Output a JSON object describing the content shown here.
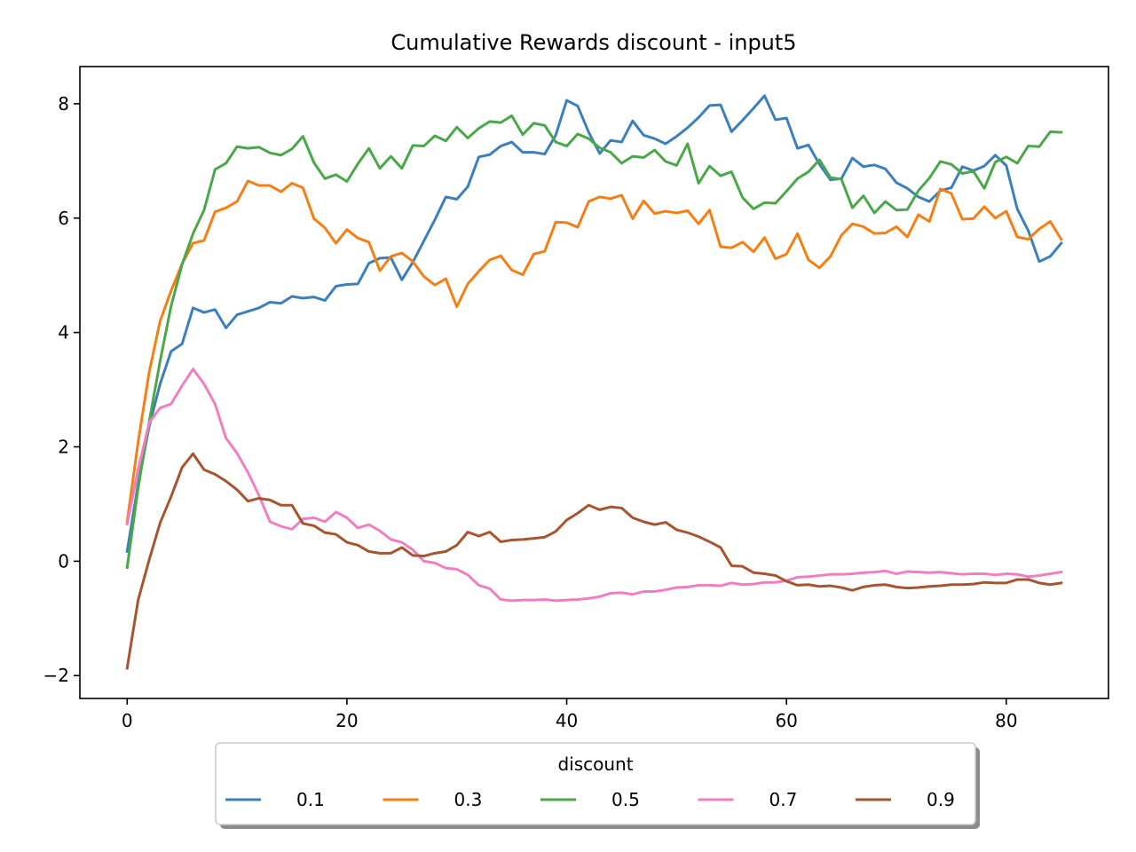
{
  "chart_data": {
    "type": "line",
    "title": "Cumulative Rewards discount - input5",
    "xlabel": "",
    "ylabel": "",
    "xlim": [
      -4.3,
      89.3
    ],
    "ylim": [
      -2.4,
      8.65
    ],
    "xticks": [
      0,
      20,
      40,
      60,
      80
    ],
    "yticks": [
      -2,
      0,
      2,
      4,
      6,
      8
    ],
    "ytick_labels": [
      "−2",
      "0",
      "2",
      "4",
      "6",
      "8"
    ],
    "grid": false,
    "legend": {
      "title": "discount",
      "placement": "lower-center-outside",
      "columns": 5
    },
    "x": [
      0,
      1,
      2,
      3,
      4,
      5,
      6,
      7,
      8,
      9,
      10,
      11,
      12,
      13,
      14,
      15,
      16,
      17,
      18,
      19,
      20,
      21,
      22,
      23,
      24,
      25,
      26,
      27,
      28,
      29,
      30,
      31,
      32,
      33,
      34,
      35,
      36,
      37,
      38,
      39,
      40,
      41,
      42,
      43,
      44,
      45,
      46,
      47,
      48,
      49,
      50,
      51,
      52,
      53,
      54,
      55,
      56,
      57,
      58,
      59,
      60,
      61,
      62,
      63,
      64,
      65,
      66,
      67,
      68,
      69,
      70,
      71,
      72,
      73,
      74,
      75,
      76,
      77,
      78,
      79,
      80,
      81,
      82,
      83,
      84,
      85
    ],
    "series": [
      {
        "name": "0.1",
        "color": "#3d7fb9",
        "values": [
          0.17,
          1.35,
          2.35,
          3.1,
          3.67,
          3.8,
          4.43,
          4.35,
          4.4,
          4.08,
          4.31,
          4.37,
          4.43,
          4.53,
          4.51,
          4.63,
          4.6,
          4.62,
          4.56,
          4.81,
          4.84,
          4.85,
          5.21,
          5.3,
          5.31,
          4.92,
          5.23,
          5.6,
          5.97,
          6.37,
          6.33,
          6.55,
          7.07,
          7.11,
          7.26,
          7.33,
          7.15,
          7.15,
          7.12,
          7.45,
          8.06,
          7.96,
          7.5,
          7.13,
          7.36,
          7.33,
          7.7,
          7.45,
          7.39,
          7.3,
          7.43,
          7.58,
          7.76,
          7.97,
          7.98,
          7.51,
          7.71,
          7.92,
          8.14,
          7.72,
          7.75,
          7.22,
          7.28,
          6.94,
          6.67,
          6.69,
          7.05,
          6.9,
          6.93,
          6.86,
          6.62,
          6.52,
          6.37,
          6.29,
          6.48,
          6.53,
          6.9,
          6.83,
          6.91,
          7.1,
          6.92,
          6.16,
          5.78,
          5.24,
          5.33,
          5.56
        ]
      },
      {
        "name": "0.3",
        "color": "#f47f14",
        "values": [
          0.69,
          2.08,
          3.3,
          4.2,
          4.73,
          5.2,
          5.56,
          5.61,
          6.11,
          6.18,
          6.29,
          6.65,
          6.57,
          6.57,
          6.46,
          6.61,
          6.53,
          5.99,
          5.83,
          5.56,
          5.8,
          5.65,
          5.58,
          5.08,
          5.33,
          5.39,
          5.24,
          4.98,
          4.83,
          4.94,
          4.45,
          4.85,
          5.07,
          5.27,
          5.34,
          5.09,
          5.01,
          5.37,
          5.42,
          5.93,
          5.92,
          5.84,
          6.29,
          6.37,
          6.34,
          6.4,
          5.99,
          6.3,
          6.08,
          6.12,
          6.09,
          6.13,
          5.9,
          6.14,
          5.5,
          5.48,
          5.58,
          5.41,
          5.66,
          5.29,
          5.37,
          5.73,
          5.27,
          5.13,
          5.33,
          5.7,
          5.9,
          5.85,
          5.73,
          5.74,
          5.85,
          5.67,
          6.06,
          5.94,
          6.51,
          6.43,
          5.98,
          5.99,
          6.2,
          6.0,
          6.12,
          5.67,
          5.63,
          5.81,
          5.94,
          5.63
        ]
      },
      {
        "name": "0.5",
        "color": "#4aa84a",
        "values": [
          -0.11,
          1.28,
          2.43,
          3.5,
          4.46,
          5.19,
          5.73,
          6.14,
          6.85,
          6.96,
          7.25,
          7.22,
          7.24,
          7.14,
          7.1,
          7.21,
          7.43,
          6.97,
          6.69,
          6.76,
          6.64,
          6.95,
          7.22,
          6.87,
          7.08,
          6.87,
          7.27,
          7.26,
          7.44,
          7.35,
          7.59,
          7.4,
          7.57,
          7.69,
          7.67,
          7.79,
          7.46,
          7.66,
          7.62,
          7.33,
          7.26,
          7.47,
          7.39,
          7.23,
          7.15,
          6.96,
          7.08,
          7.06,
          7.19,
          6.99,
          6.92,
          7.3,
          6.61,
          6.91,
          6.74,
          6.81,
          6.36,
          6.16,
          6.27,
          6.26,
          6.47,
          6.69,
          6.81,
          7.02,
          6.71,
          6.68,
          6.18,
          6.39,
          6.09,
          6.29,
          6.14,
          6.15,
          6.48,
          6.7,
          6.99,
          6.94,
          6.78,
          6.82,
          6.52,
          6.98,
          7.07,
          6.96,
          7.26,
          7.25,
          7.51,
          7.5
        ]
      },
      {
        "name": "0.7",
        "color": "#f07fc0",
        "values": [
          0.65,
          1.6,
          2.42,
          2.68,
          2.75,
          3.07,
          3.36,
          3.1,
          2.75,
          2.15,
          1.89,
          1.55,
          1.15,
          0.69,
          0.61,
          0.56,
          0.74,
          0.76,
          0.69,
          0.86,
          0.76,
          0.58,
          0.64,
          0.53,
          0.38,
          0.33,
          0.2,
          0.0,
          -0.03,
          -0.12,
          -0.14,
          -0.24,
          -0.42,
          -0.48,
          -0.67,
          -0.69,
          -0.68,
          -0.68,
          -0.67,
          -0.69,
          -0.68,
          -0.67,
          -0.65,
          -0.62,
          -0.56,
          -0.55,
          -0.58,
          -0.53,
          -0.53,
          -0.5,
          -0.46,
          -0.45,
          -0.42,
          -0.42,
          -0.43,
          -0.38,
          -0.41,
          -0.4,
          -0.37,
          -0.37,
          -0.34,
          -0.28,
          -0.27,
          -0.25,
          -0.23,
          -0.23,
          -0.22,
          -0.2,
          -0.19,
          -0.17,
          -0.22,
          -0.18,
          -0.19,
          -0.2,
          -0.19,
          -0.21,
          -0.23,
          -0.22,
          -0.22,
          -0.24,
          -0.22,
          -0.23,
          -0.27,
          -0.25,
          -0.22,
          -0.19
        ]
      },
      {
        "name": "0.9",
        "color": "#a65530",
        "values": [
          -1.87,
          -0.68,
          0.02,
          0.67,
          1.13,
          1.64,
          1.88,
          1.6,
          1.52,
          1.4,
          1.25,
          1.05,
          1.1,
          1.07,
          0.98,
          0.98,
          0.66,
          0.62,
          0.5,
          0.47,
          0.33,
          0.28,
          0.17,
          0.14,
          0.14,
          0.24,
          0.1,
          0.09,
          0.14,
          0.17,
          0.28,
          0.51,
          0.44,
          0.51,
          0.34,
          0.37,
          0.38,
          0.4,
          0.42,
          0.52,
          0.72,
          0.84,
          0.98,
          0.9,
          0.95,
          0.93,
          0.76,
          0.69,
          0.64,
          0.68,
          0.55,
          0.5,
          0.43,
          0.34,
          0.24,
          -0.08,
          -0.09,
          -0.2,
          -0.22,
          -0.25,
          -0.35,
          -0.42,
          -0.41,
          -0.44,
          -0.43,
          -0.46,
          -0.51,
          -0.45,
          -0.42,
          -0.41,
          -0.45,
          -0.47,
          -0.46,
          -0.44,
          -0.43,
          -0.41,
          -0.41,
          -0.4,
          -0.37,
          -0.38,
          -0.38,
          -0.32,
          -0.32,
          -0.38,
          -0.41,
          -0.38
        ]
      }
    ]
  }
}
